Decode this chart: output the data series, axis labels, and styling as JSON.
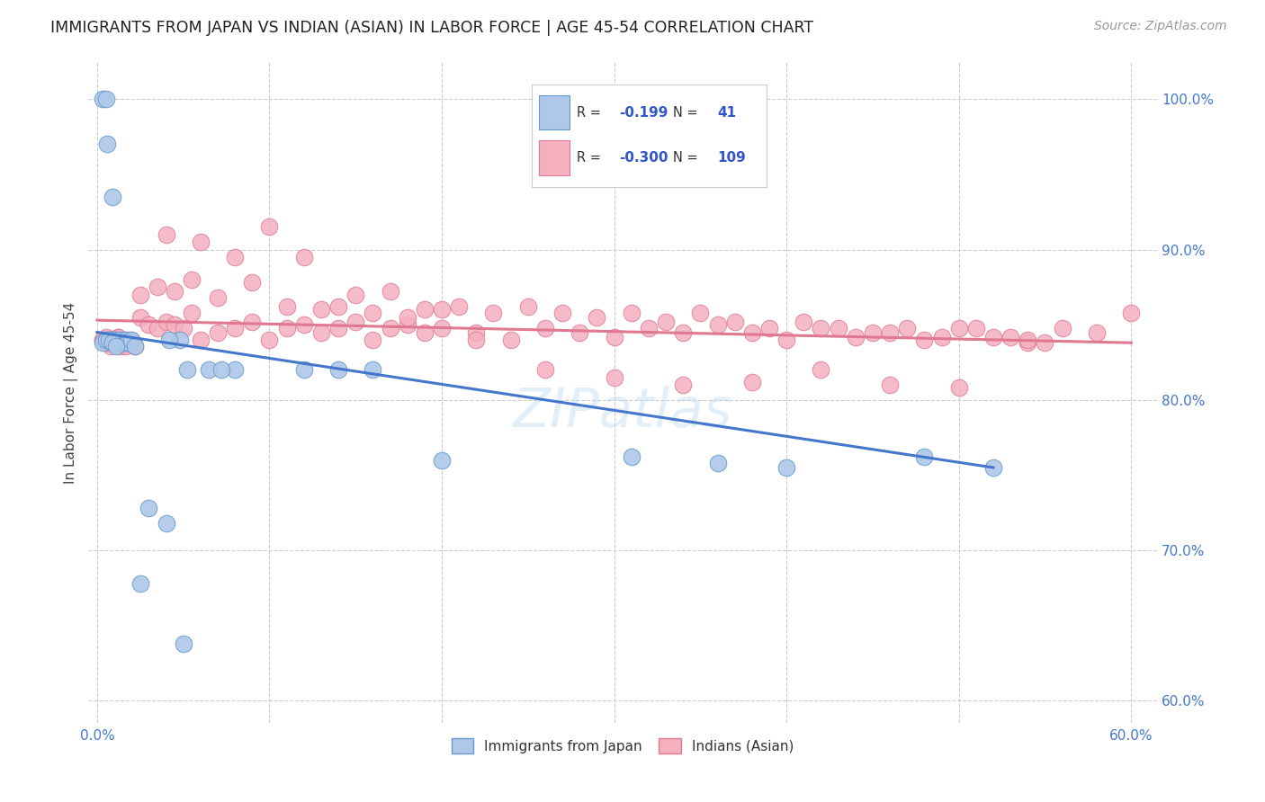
{
  "title": "IMMIGRANTS FROM JAPAN VS INDIAN (ASIAN) IN LABOR FORCE | AGE 45-54 CORRELATION CHART",
  "source": "Source: ZipAtlas.com",
  "ylabel": "In Labor Force | Age 45-54",
  "xlim": [
    -0.005,
    0.615
  ],
  "ylim": [
    0.585,
    1.025
  ],
  "xtick_positions": [
    0.0,
    0.1,
    0.2,
    0.3,
    0.4,
    0.5,
    0.6
  ],
  "xticklabels": [
    "0.0%",
    "",
    "",
    "",
    "",
    "",
    "60.0%"
  ],
  "ytick_positions": [
    0.6,
    0.7,
    0.8,
    0.9,
    1.0
  ],
  "yticklabels": [
    "60.0%",
    "70.0%",
    "80.0%",
    "90.0%",
    "100.0%"
  ],
  "japan_color": "#adc8e8",
  "japan_edge": "#6699cc",
  "indian_color": "#f5b0c0",
  "indian_edge": "#e07890",
  "japan_line_color": "#4477cc",
  "indian_line_color": "#e07890",
  "japan_R": "-0.199",
  "japan_N": "41",
  "indian_R": "-0.300",
  "indian_N": "109",
  "legend_label_japan": "Immigrants from Japan",
  "legend_label_indian": "Indians (Asian)",
  "japan_line_x": [
    0.0,
    0.52
  ],
  "japan_line_y": [
    0.845,
    0.755
  ],
  "indian_line_x": [
    0.0,
    0.6
  ],
  "indian_line_y": [
    0.853,
    0.838
  ],
  "japan_x": [
    0.003,
    0.005,
    0.006,
    0.007,
    0.008,
    0.009,
    0.01,
    0.011,
    0.012,
    0.013,
    0.014,
    0.015,
    0.016,
    0.017,
    0.018,
    0.003,
    0.005,
    0.007,
    0.009,
    0.011,
    0.02,
    0.022,
    0.065,
    0.08,
    0.12,
    0.14,
    0.16,
    0.31,
    0.36,
    0.4,
    0.48,
    0.52,
    0.025,
    0.03,
    0.04,
    0.05,
    0.048,
    0.2,
    0.052,
    0.072,
    0.042
  ],
  "japan_y": [
    1.0,
    1.0,
    0.97,
    0.84,
    0.84,
    0.935,
    0.84,
    0.84,
    0.838,
    0.84,
    0.838,
    0.838,
    0.84,
    0.838,
    0.838,
    0.838,
    0.84,
    0.84,
    0.838,
    0.836,
    0.84,
    0.836,
    0.82,
    0.82,
    0.82,
    0.82,
    0.82,
    0.762,
    0.758,
    0.755,
    0.762,
    0.755,
    0.678,
    0.728,
    0.718,
    0.638,
    0.84,
    0.76,
    0.82,
    0.82,
    0.84
  ],
  "indian_x": [
    0.003,
    0.005,
    0.006,
    0.008,
    0.01,
    0.012,
    0.013,
    0.014,
    0.015,
    0.016,
    0.017,
    0.018,
    0.02,
    0.022,
    0.003,
    0.005,
    0.008,
    0.01,
    0.012,
    0.015,
    0.025,
    0.03,
    0.035,
    0.04,
    0.045,
    0.05,
    0.055,
    0.06,
    0.07,
    0.08,
    0.09,
    0.1,
    0.11,
    0.12,
    0.13,
    0.14,
    0.15,
    0.16,
    0.17,
    0.18,
    0.19,
    0.2,
    0.22,
    0.24,
    0.26,
    0.28,
    0.3,
    0.32,
    0.34,
    0.36,
    0.38,
    0.4,
    0.42,
    0.44,
    0.46,
    0.48,
    0.5,
    0.52,
    0.54,
    0.56,
    0.58,
    0.6,
    0.025,
    0.035,
    0.045,
    0.055,
    0.07,
    0.09,
    0.11,
    0.13,
    0.15,
    0.17,
    0.19,
    0.21,
    0.23,
    0.25,
    0.27,
    0.29,
    0.31,
    0.33,
    0.35,
    0.37,
    0.39,
    0.41,
    0.43,
    0.45,
    0.47,
    0.49,
    0.51,
    0.53,
    0.55,
    0.04,
    0.06,
    0.08,
    0.1,
    0.12,
    0.14,
    0.16,
    0.18,
    0.2,
    0.22,
    0.26,
    0.3,
    0.34,
    0.38,
    0.42,
    0.46,
    0.5,
    0.54
  ],
  "indian_y": [
    0.84,
    0.842,
    0.838,
    0.836,
    0.84,
    0.842,
    0.838,
    0.836,
    0.84,
    0.838,
    0.836,
    0.84,
    0.84,
    0.836,
    0.84,
    0.838,
    0.84,
    0.84,
    0.842,
    0.84,
    0.855,
    0.85,
    0.848,
    0.852,
    0.85,
    0.848,
    0.858,
    0.84,
    0.845,
    0.848,
    0.852,
    0.84,
    0.848,
    0.85,
    0.845,
    0.848,
    0.852,
    0.84,
    0.848,
    0.85,
    0.845,
    0.848,
    0.845,
    0.84,
    0.848,
    0.845,
    0.842,
    0.848,
    0.845,
    0.85,
    0.845,
    0.84,
    0.848,
    0.842,
    0.845,
    0.84,
    0.848,
    0.842,
    0.838,
    0.848,
    0.845,
    0.858,
    0.87,
    0.875,
    0.872,
    0.88,
    0.868,
    0.878,
    0.862,
    0.86,
    0.87,
    0.872,
    0.86,
    0.862,
    0.858,
    0.862,
    0.858,
    0.855,
    0.858,
    0.852,
    0.858,
    0.852,
    0.848,
    0.852,
    0.848,
    0.845,
    0.848,
    0.842,
    0.848,
    0.842,
    0.838,
    0.91,
    0.905,
    0.895,
    0.915,
    0.895,
    0.862,
    0.858,
    0.855,
    0.86,
    0.84,
    0.82,
    0.815,
    0.81,
    0.812,
    0.82,
    0.81,
    0.808,
    0.84
  ]
}
